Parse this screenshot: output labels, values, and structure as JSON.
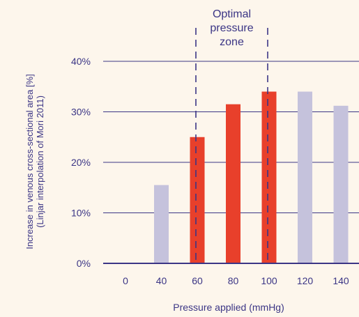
{
  "chart_data": {
    "type": "bar",
    "xlabel": "Pressure applied (mmHg)",
    "ylabel_lines": [
      "Increase in venous cross-sectional area [%]",
      "(Linjar interpolation of Mori 2011)"
    ],
    "categories": [
      "0",
      "40",
      "60",
      "80",
      "100",
      "120",
      "140"
    ],
    "values": [
      0,
      15.5,
      25,
      31.5,
      34,
      34,
      31.2
    ],
    "highlighted": [
      false,
      false,
      true,
      true,
      true,
      false,
      false
    ],
    "yticks": [
      "0%",
      "10%",
      "20%",
      "30%",
      "40%"
    ],
    "ylim": [
      0,
      40
    ],
    "grid": true,
    "annotation": {
      "lines": [
        "Optimal",
        "pressure",
        "zone"
      ],
      "from_category": "60",
      "to_category": "100"
    }
  },
  "colors": {
    "background": "#fdf6ec",
    "highlight_bar": "#e8402b",
    "normal_bar": "#c5c2dc",
    "axis": "#3b3585",
    "text": "#3b3585"
  }
}
